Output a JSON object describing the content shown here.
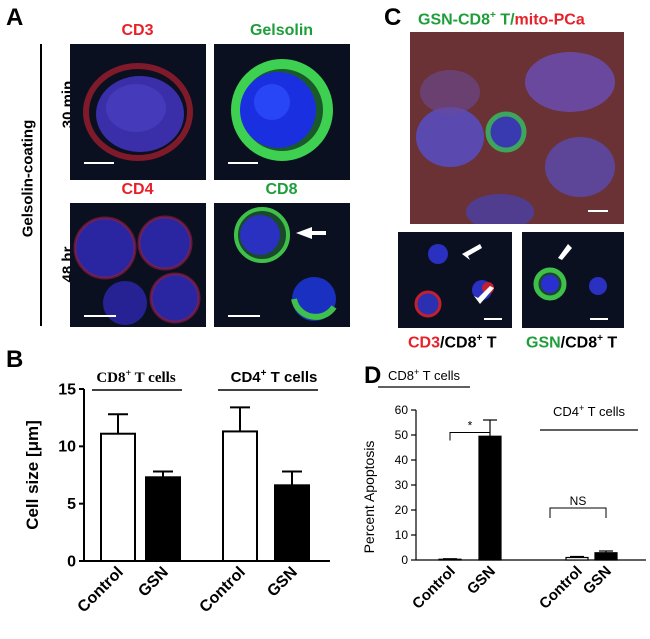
{
  "panel_a": {
    "label": "A",
    "side_label": "Gelsolin-coating",
    "row1_label": "30 min",
    "row2_label": "48 hr",
    "titles": {
      "cd3": "CD3",
      "gelsolin": "Gelsolin",
      "cd4": "CD4",
      "cd8": "CD8"
    },
    "colors": {
      "red": "#e8202a",
      "green": "#1e9e3a"
    }
  },
  "panel_c": {
    "label": "C",
    "title_green": "GSN-CD8",
    "title_sup": "+",
    "title_t": " T",
    "title_slash": "/",
    "title_red": "mito-PCa",
    "cap1_red": "CD3",
    "cap1_rest": "/CD8",
    "cap1_sup": "+",
    "cap1_t": " T",
    "cap2_green": "GSN",
    "cap2_rest": "/CD8",
    "cap2_sup": "+",
    "cap2_t": " T"
  },
  "panel_b": {
    "label": "B",
    "group1": "CD8",
    "group1_sup": "+",
    "group1_t": " T cells",
    "group2": "CD4",
    "group2_sup": "+",
    "group2_t": " T cells",
    "ylabel": "Cell size [μm]"
  },
  "panel_d": {
    "label": "D",
    "group1": "CD8",
    "group1_sup": "+",
    "group1_t": " T cells",
    "group2": "CD4",
    "group2_sup": "+",
    "group2_t": " T cells",
    "sig1": "*",
    "sig2": "NS",
    "ylabel": "Percent Apoptosis"
  },
  "chart_data": [
    {
      "id": "B",
      "type": "bar",
      "ylabel": "Cell size [μm]",
      "ylim": [
        0,
        15
      ],
      "yticks": [
        0,
        5,
        10,
        15
      ],
      "categories": [
        "Control",
        "GSN",
        "Control",
        "GSN"
      ],
      "groups": [
        "CD8+ T cells",
        "CD8+ T cells",
        "CD4+ T cells",
        "CD4+ T cells"
      ],
      "values": [
        11.1,
        7.3,
        11.3,
        6.6
      ],
      "errors": [
        1.7,
        0.5,
        2.1,
        1.2
      ],
      "fills": [
        "#ffffff",
        "#000000",
        "#ffffff",
        "#000000"
      ]
    },
    {
      "id": "D",
      "type": "bar",
      "ylabel": "Percent Apoptosis",
      "ylim": [
        0,
        60
      ],
      "yticks": [
        0,
        10,
        20,
        30,
        40,
        50,
        60
      ],
      "categories": [
        "Control",
        "GSN",
        "Control",
        "GSN"
      ],
      "groups": [
        "CD8+ T cells",
        "CD8+ T cells",
        "CD4+ T cells",
        "CD4+ T cells"
      ],
      "values": [
        0.3,
        49.5,
        1.0,
        2.9
      ],
      "errors": [
        0.2,
        6.5,
        0.4,
        0.7
      ],
      "fills": [
        "#ffffff",
        "#000000",
        "#ffffff",
        "#000000"
      ],
      "significance": [
        {
          "pair": [
            0,
            1
          ],
          "label": "*"
        },
        {
          "pair": [
            2,
            3
          ],
          "label": "NS"
        }
      ]
    }
  ]
}
